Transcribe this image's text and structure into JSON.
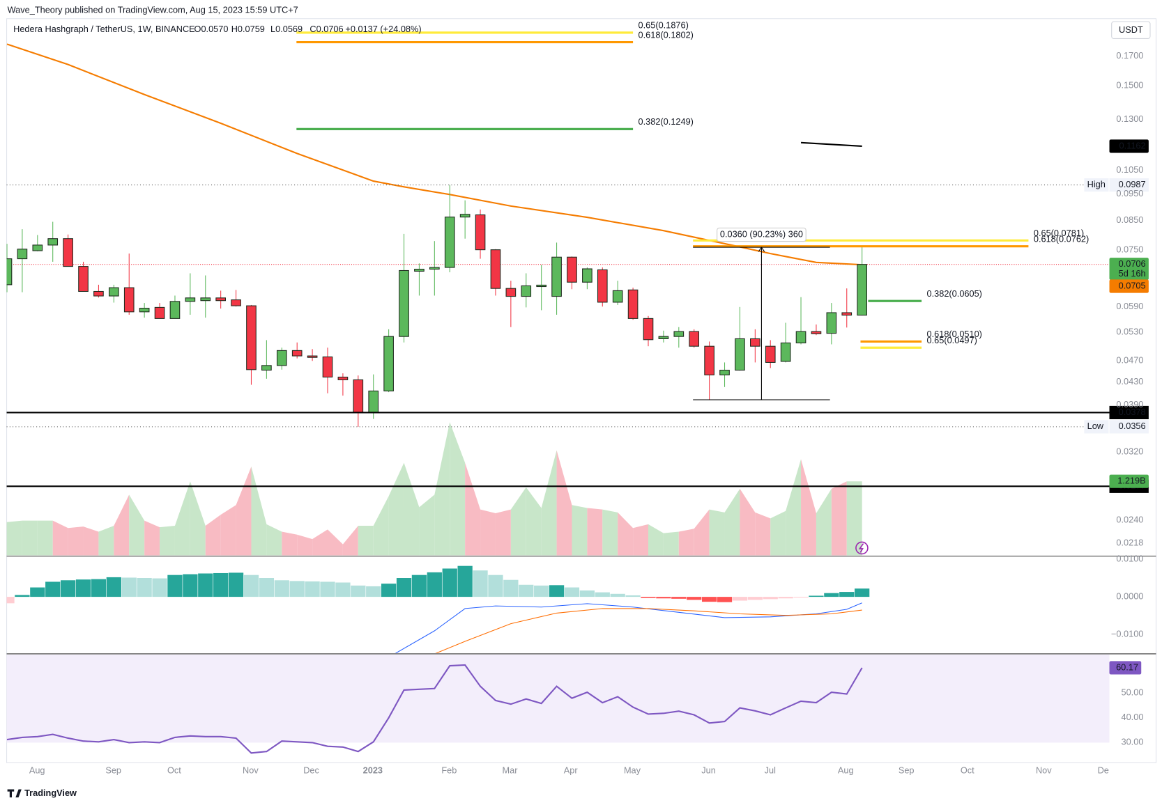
{
  "header": {
    "publisher": "Wave_Theory published on TradingView.com, Aug 15, 2023 15:59 UTC+7"
  },
  "footer": {
    "brand": "TradingView"
  },
  "chart_data": [
    {
      "type": "candlestick",
      "title": "Hedera Hashgraph / TetherUS, 1W, BINANCE",
      "legend": [
        "O0.0570",
        "H0.0759",
        "L0.0569",
        "C0.0706",
        "+0.0137 (+24.08%)"
      ],
      "currency": "USDT",
      "log_scale": true,
      "grid": false,
      "up_color": "#5cb85c",
      "down_color": "#f23645",
      "ylim": [
        0.0207,
        0.199
      ],
      "yticks": [
        {
          "value": 0.0218,
          "label": "0.0218"
        },
        {
          "value": 0.024,
          "label": "0.0240"
        },
        {
          "value": 0.032,
          "label": "0.0320"
        },
        {
          "value": 0.039,
          "label": "0.0390"
        },
        {
          "value": 0.043,
          "label": "0.0430"
        },
        {
          "value": 0.047,
          "label": "0.0470"
        },
        {
          "value": 0.053,
          "label": "0.0530"
        },
        {
          "value": 0.059,
          "label": "0.0590"
        },
        {
          "value": 0.075,
          "label": "0.0750"
        },
        {
          "value": 0.085,
          "label": "0.0850"
        },
        {
          "value": 0.095,
          "label": "0.0950"
        },
        {
          "value": 0.105,
          "label": "0.1050"
        },
        {
          "value": 0.13,
          "label": "0.1300"
        },
        {
          "value": 0.15,
          "label": "0.1500"
        },
        {
          "value": 0.17,
          "label": "0.1700"
        }
      ],
      "xlim": [
        -0.02,
        72.2
      ],
      "xticks": [
        {
          "value": 1.97,
          "label": "Aug"
        },
        {
          "value": 6.97,
          "label": "Sep"
        },
        {
          "value": 10.95,
          "label": "Oct"
        },
        {
          "value": 15.95,
          "label": "Nov"
        },
        {
          "value": 19.93,
          "label": "Dec"
        },
        {
          "value": 23.96,
          "label": "2023"
        },
        {
          "value": 28.96,
          "label": "Feb"
        },
        {
          "value": 32.94,
          "label": "Mar"
        },
        {
          "value": 36.92,
          "label": "Apr"
        },
        {
          "value": 40.95,
          "label": "May"
        },
        {
          "value": 45.95,
          "label": "Jun"
        },
        {
          "value": 49.98,
          "label": "Jul"
        },
        {
          "value": 54.93,
          "label": "Aug"
        },
        {
          "value": 58.9,
          "label": "Sep"
        },
        {
          "value": 62.9,
          "label": "Oct"
        },
        {
          "value": 67.9,
          "label": "Nov"
        },
        {
          "value": 71.8,
          "label": "De"
        }
      ],
      "open": [
        0.0648,
        0.0723,
        0.0748,
        0.0766,
        0.0787,
        0.07,
        0.063,
        0.0618,
        0.064,
        0.0578,
        0.0589,
        0.0562,
        0.0604,
        0.0606,
        0.0613,
        0.0608,
        0.0593,
        0.0452,
        0.0461,
        0.0491,
        0.048,
        0.0478,
        0.0439,
        0.0434,
        0.0378,
        0.0414,
        0.0521,
        0.0686,
        0.0692,
        0.0697,
        0.0862,
        0.087,
        0.0751,
        0.0638,
        0.0617,
        0.0643,
        0.0617,
        0.0728,
        0.0655,
        0.069,
        0.0602,
        0.0634,
        0.0562,
        0.0516,
        0.0521,
        0.0532,
        0.05,
        0.0443,
        0.0452,
        0.0516,
        0.05,
        0.0469,
        0.0507,
        0.0532,
        0.0528,
        0.0576,
        0.057
      ],
      "high": [
        0.077,
        0.0819,
        0.0799,
        0.0845,
        0.0801,
        0.0714,
        0.0648,
        0.0648,
        0.0739,
        0.06,
        0.06,
        0.0619,
        0.068,
        0.0674,
        0.0632,
        0.0634,
        0.0595,
        0.0513,
        0.0497,
        0.0508,
        0.0494,
        0.0497,
        0.0446,
        0.0442,
        0.0444,
        0.0537,
        0.0803,
        0.0709,
        0.0779,
        0.0987,
        0.0925,
        0.089,
        0.0753,
        0.0659,
        0.068,
        0.0705,
        0.0774,
        0.073,
        0.0697,
        0.0697,
        0.0659,
        0.064,
        0.0568,
        0.0534,
        0.0542,
        0.0537,
        0.051,
        0.0467,
        0.059,
        0.0537,
        0.0513,
        0.0552,
        0.0615,
        0.0548,
        0.06,
        0.0638,
        0.0759
      ],
      "low": [
        0.0628,
        0.0628,
        0.0746,
        0.0714,
        0.07,
        0.063,
        0.0614,
        0.0601,
        0.0571,
        0.0564,
        0.0562,
        0.0562,
        0.0571,
        0.0564,
        0.0586,
        0.0591,
        0.0425,
        0.0436,
        0.0453,
        0.0475,
        0.047,
        0.041,
        0.0406,
        0.0356,
        0.0368,
        0.0412,
        0.0508,
        0.0619,
        0.0619,
        0.0683,
        0.0787,
        0.0723,
        0.0619,
        0.0542,
        0.0589,
        0.0582,
        0.0571,
        0.0636,
        0.0636,
        0.0591,
        0.0595,
        0.0559,
        0.05,
        0.0508,
        0.0497,
        0.0497,
        0.0399,
        0.0421,
        0.0451,
        0.0467,
        0.0456,
        0.0467,
        0.0504,
        0.0524,
        0.0504,
        0.0541,
        0.0569
      ],
      "close": [
        0.0723,
        0.0753,
        0.0766,
        0.0787,
        0.07,
        0.063,
        0.0618,
        0.064,
        0.0578,
        0.0587,
        0.0562,
        0.0604,
        0.0613,
        0.0613,
        0.0606,
        0.0593,
        0.0453,
        0.0461,
        0.0491,
        0.048,
        0.0477,
        0.0439,
        0.0434,
        0.0378,
        0.0414,
        0.0521,
        0.0688,
        0.0692,
        0.0697,
        0.0862,
        0.0872,
        0.0751,
        0.0638,
        0.0617,
        0.0645,
        0.0647,
        0.0728,
        0.0655,
        0.0693,
        0.0602,
        0.0632,
        0.0562,
        0.0514,
        0.0521,
        0.0532,
        0.05,
        0.0443,
        0.0452,
        0.0516,
        0.05,
        0.0467,
        0.0507,
        0.0532,
        0.0527,
        0.0576,
        0.057,
        0.0706
      ],
      "countdown": "5d 16h",
      "last_color": "#4caf50",
      "volume": {
        "up_color": "#c8e6c9",
        "down_color": "#f8bbc3",
        "badge_color": "#4caf50",
        "values": [
          548550000,
          572930000,
          572930000,
          572930000,
          451030000,
          475410000,
          390080000,
          487600000,
          999580000,
          572930000,
          463220000,
          487600000,
          1219000000,
          487600000,
          670450000,
          828920000,
          1462800000,
          511980000,
          390080000,
          341320000,
          268180000,
          426650000,
          182850000,
          487600000,
          487600000,
          975200000,
          1523750000,
          792350000,
          999580000,
          2194200000,
          1523750000,
          755780000,
          694830000,
          755780000,
          1121480000,
          780160000,
          1730980000,
          828920000,
          780160000,
          755780000,
          707020000,
          451030000,
          511980000,
          365700000,
          390080000,
          438840000,
          755780000,
          707020000,
          1097100000,
          707020000,
          609500000,
          731400000,
          1584700000,
          694830000,
          1097100000,
          1219000000,
          1219000000
        ],
        "value_labels": [
          null,
          null,
          null,
          null,
          null,
          null,
          null,
          null,
          null,
          null,
          null,
          null,
          null,
          null,
          null,
          null,
          null,
          null,
          null,
          null,
          null,
          null,
          null,
          null,
          null,
          null,
          null,
          null,
          null,
          null,
          null,
          null,
          null,
          null,
          null,
          null,
          null,
          null,
          null,
          null,
          null,
          null,
          null,
          null,
          null,
          null,
          null,
          null,
          null,
          null,
          null,
          null,
          null,
          null,
          null,
          null,
          "1.219B"
        ]
      },
      "lines": [
        {
          "color": "#f57c00",
          "badge": true,
          "x": [
            0,
            4,
            9,
            14,
            19,
            24,
            26,
            29,
            33,
            38,
            43,
            48,
            50,
            53,
            56
          ],
          "values": [
            0.1787,
            0.164,
            0.1445,
            0.128,
            0.1127,
            0.1003,
            0.0979,
            0.0948,
            0.0903,
            0.0861,
            0.0814,
            0.076,
            0.0739,
            0.0712,
            0.0705
          ]
        },
        {
          "color": "#000000",
          "badge": true,
          "x": [
            52,
            56
          ],
          "values": [
            0.118,
            0.1162
          ]
        }
      ],
      "levels": [
        {
          "value": 0.0987,
          "label": "High",
          "style": "dotted",
          "color": "#555555"
        },
        {
          "value": 0.0356,
          "label": "Low",
          "style": "dotted",
          "color": "#555555"
        },
        {
          "value": 0.0378,
          "style": "solid",
          "color": "#000000"
        },
        {
          "value": 0.0277,
          "style": "solid",
          "color": "#000000"
        }
      ],
      "fib_levels": [
        {
          "label": "0.65(0.1876)",
          "value": 0.1876,
          "x": [
            18.96,
            41.0
          ],
          "color": "#ffeb3b"
        },
        {
          "label": "0.618(0.1802)",
          "value": 0.1802,
          "x": [
            18.96,
            41.0
          ],
          "color": "#ff9800"
        },
        {
          "label": "0.382(0.1249)",
          "value": 0.1249,
          "x": [
            18.96,
            41.0
          ],
          "color": "#4caf50"
        },
        {
          "label": "0.65(0.0781)",
          "value": 0.0781,
          "x": [
            44.93,
            66.9
          ],
          "color": "#ffeb3b"
        },
        {
          "label": "0.618(0.0762)",
          "value": 0.0762,
          "x": [
            44.93,
            66.9
          ],
          "color": "#ff9800"
        },
        {
          "label": "0.382(0.0605)",
          "value": 0.0605,
          "x": [
            56.4,
            59.9
          ],
          "color": "#4caf50"
        },
        {
          "label": "0.618(0.0510)",
          "value": 0.051,
          "x": [
            55.9,
            59.9
          ],
          "color": "#ff9800"
        },
        {
          "label": "0.65(0.0497)",
          "value": 0.0497,
          "x": [
            55.9,
            59.9
          ],
          "color": "#ffeb3b"
        }
      ],
      "measure": {
        "label": "0.0360 (90.23%) 360",
        "low": 0.0399,
        "high": 0.0759,
        "x": [
          44.93,
          53.9
        ]
      }
    },
    {
      "type": "macd",
      "ylim": [
        -0.0151,
        0.0106
      ],
      "yticks": [
        {
          "value": 0.01,
          "label": "0.0100"
        },
        {
          "value": 0,
          "label": "0.0000"
        },
        {
          "value": -0.01,
          "label": "−0.0100"
        }
      ],
      "colors": {
        "up_rising": "#26a69a",
        "up_falling": "#b2dfdb",
        "down_falling": "#ff5252",
        "down_rising": "#ffcdd2"
      },
      "histogram": [
        -0.0017,
        0.0005,
        0.0025,
        0.004,
        0.0044,
        0.0046,
        0.0047,
        0.0052,
        0.0051,
        0.005,
        0.0049,
        0.0058,
        0.006,
        0.0062,
        0.0063,
        0.0064,
        0.0058,
        0.005,
        0.0044,
        0.0042,
        0.0041,
        0.004,
        0.0038,
        0.003,
        0.0028,
        0.0035,
        0.005,
        0.0058,
        0.0065,
        0.0075,
        0.0082,
        0.007,
        0.0058,
        0.0045,
        0.0032,
        0.003,
        0.0031,
        0.0025,
        0.0017,
        0.0012,
        0.0008,
        0.0004,
        -0.0003,
        -0.0004,
        -0.0005,
        -0.0008,
        -0.0013,
        -0.0014,
        -0.001,
        -0.0008,
        -0.0006,
        -0.0004,
        -0.0001,
        0.0003,
        0.001,
        0.0013,
        0.0022
      ],
      "series": [
        {
          "color": "#2962ff",
          "x": [
            25,
            28,
            30,
            32,
            35,
            38,
            41,
            44,
            47,
            50,
            53,
            55,
            56
          ],
          "values": [
            -0.016,
            -0.009,
            -0.0031,
            -0.0024,
            -0.0027,
            -0.0018,
            -0.0027,
            -0.0041,
            -0.0055,
            -0.0053,
            -0.0045,
            -0.0033,
            -0.0016
          ]
        },
        {
          "color": "#ff6d00",
          "x": [
            28,
            30,
            33,
            36,
            39,
            42,
            45,
            48,
            51,
            54,
            56
          ],
          "values": [
            -0.0151,
            -0.0118,
            -0.0071,
            -0.0043,
            -0.0031,
            -0.0031,
            -0.0037,
            -0.0045,
            -0.0049,
            -0.0045,
            -0.0035
          ]
        }
      ]
    },
    {
      "type": "rsi",
      "ylim": [
        21.9,
        65.5
      ],
      "yticks": [
        {
          "value": 50,
          "label": "50.00"
        },
        {
          "value": 40,
          "label": "40.00"
        },
        {
          "value": 30,
          "label": "30.00"
        }
      ],
      "band": [
        30,
        70
      ],
      "band_color": "#f3eefb",
      "color": "#7e57c2",
      "values": [
        31.2,
        32.1,
        32.4,
        33.3,
        31.8,
        30.6,
        30.3,
        31.2,
        30.0,
        30.3,
        30.0,
        32.1,
        32.7,
        32.4,
        32.4,
        31.8,
        25.8,
        26.4,
        30.6,
        30.3,
        30.0,
        28.5,
        28.2,
        26.4,
        30.3,
        40.0,
        51.2,
        51.5,
        51.8,
        61.0,
        61.3,
        52.7,
        47.0,
        45.5,
        47.6,
        45.8,
        52.7,
        47.9,
        50.3,
        46.1,
        48.5,
        44.3,
        41.5,
        41.8,
        42.7,
        41.2,
        37.9,
        38.5,
        44.0,
        42.8,
        41.2,
        44.0,
        46.7,
        46.1,
        50.3,
        49.6,
        60.17
      ]
    }
  ]
}
